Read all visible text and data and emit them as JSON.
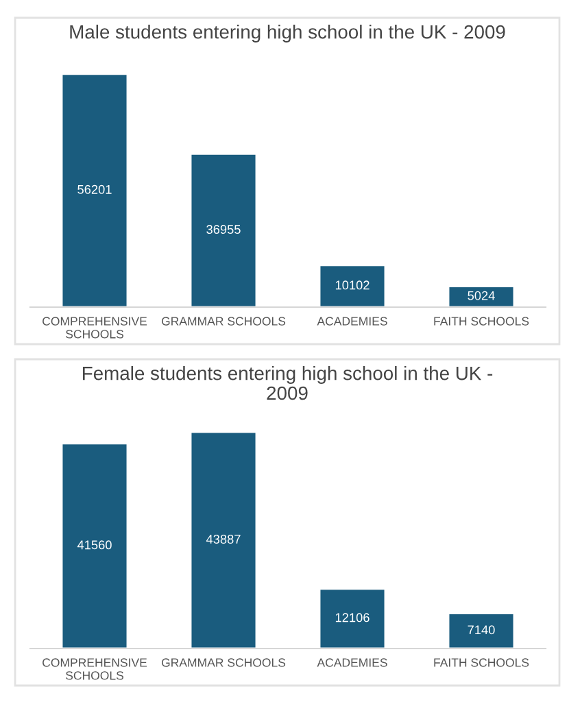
{
  "chart_data": [
    {
      "type": "bar",
      "title": "Male students entering high school in the UK - 2009",
      "categories": [
        "COMPREHENSIVE SCHOOLS",
        "GRAMMAR SCHOOLS",
        "ACADEMIES",
        "FAITH SCHOOLS"
      ],
      "values": [
        56201,
        36955,
        10102,
        5024
      ],
      "color": "#1a5c7e",
      "data_labels": true,
      "tick_labels": "x"
    },
    {
      "type": "bar",
      "title": "Female students entering high school in the UK - 2009",
      "categories": [
        "COMPREHENSIVE SCHOOLS",
        "GRAMMAR SCHOOLS",
        "ACADEMIES",
        "FAITH SCHOOLS"
      ],
      "values": [
        41560,
        43887,
        12106,
        7140
      ],
      "color": "#1a5c7e",
      "data_labels": true,
      "tick_labels": "x"
    }
  ]
}
